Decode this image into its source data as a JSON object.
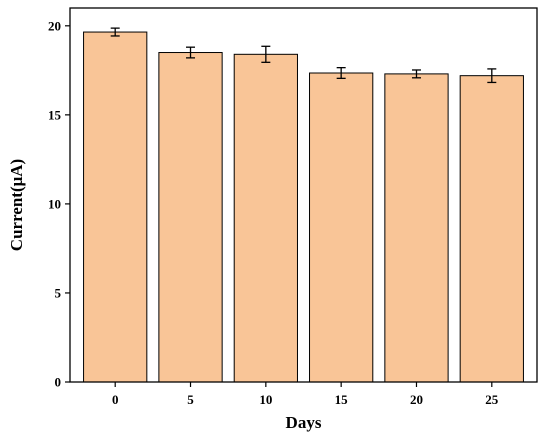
{
  "chart_data": {
    "type": "bar",
    "title": "",
    "xlabel": "Days",
    "ylabel": "Current(μA)",
    "categories": [
      "0",
      "5",
      "10",
      "15",
      "20",
      "25"
    ],
    "values": [
      19.65,
      18.5,
      18.4,
      17.35,
      17.3,
      17.2
    ],
    "errors": [
      0.22,
      0.3,
      0.45,
      0.3,
      0.22,
      0.38
    ],
    "ylim": [
      0,
      21
    ],
    "yticks": [
      "0",
      "5",
      "10",
      "15",
      "20"
    ],
    "ytick_values": [
      0,
      5,
      10,
      15,
      20
    ],
    "grid": false,
    "colors": {
      "bar_fill": "#F9C597",
      "bar_stroke": "#000000",
      "axis": "#000000"
    }
  }
}
